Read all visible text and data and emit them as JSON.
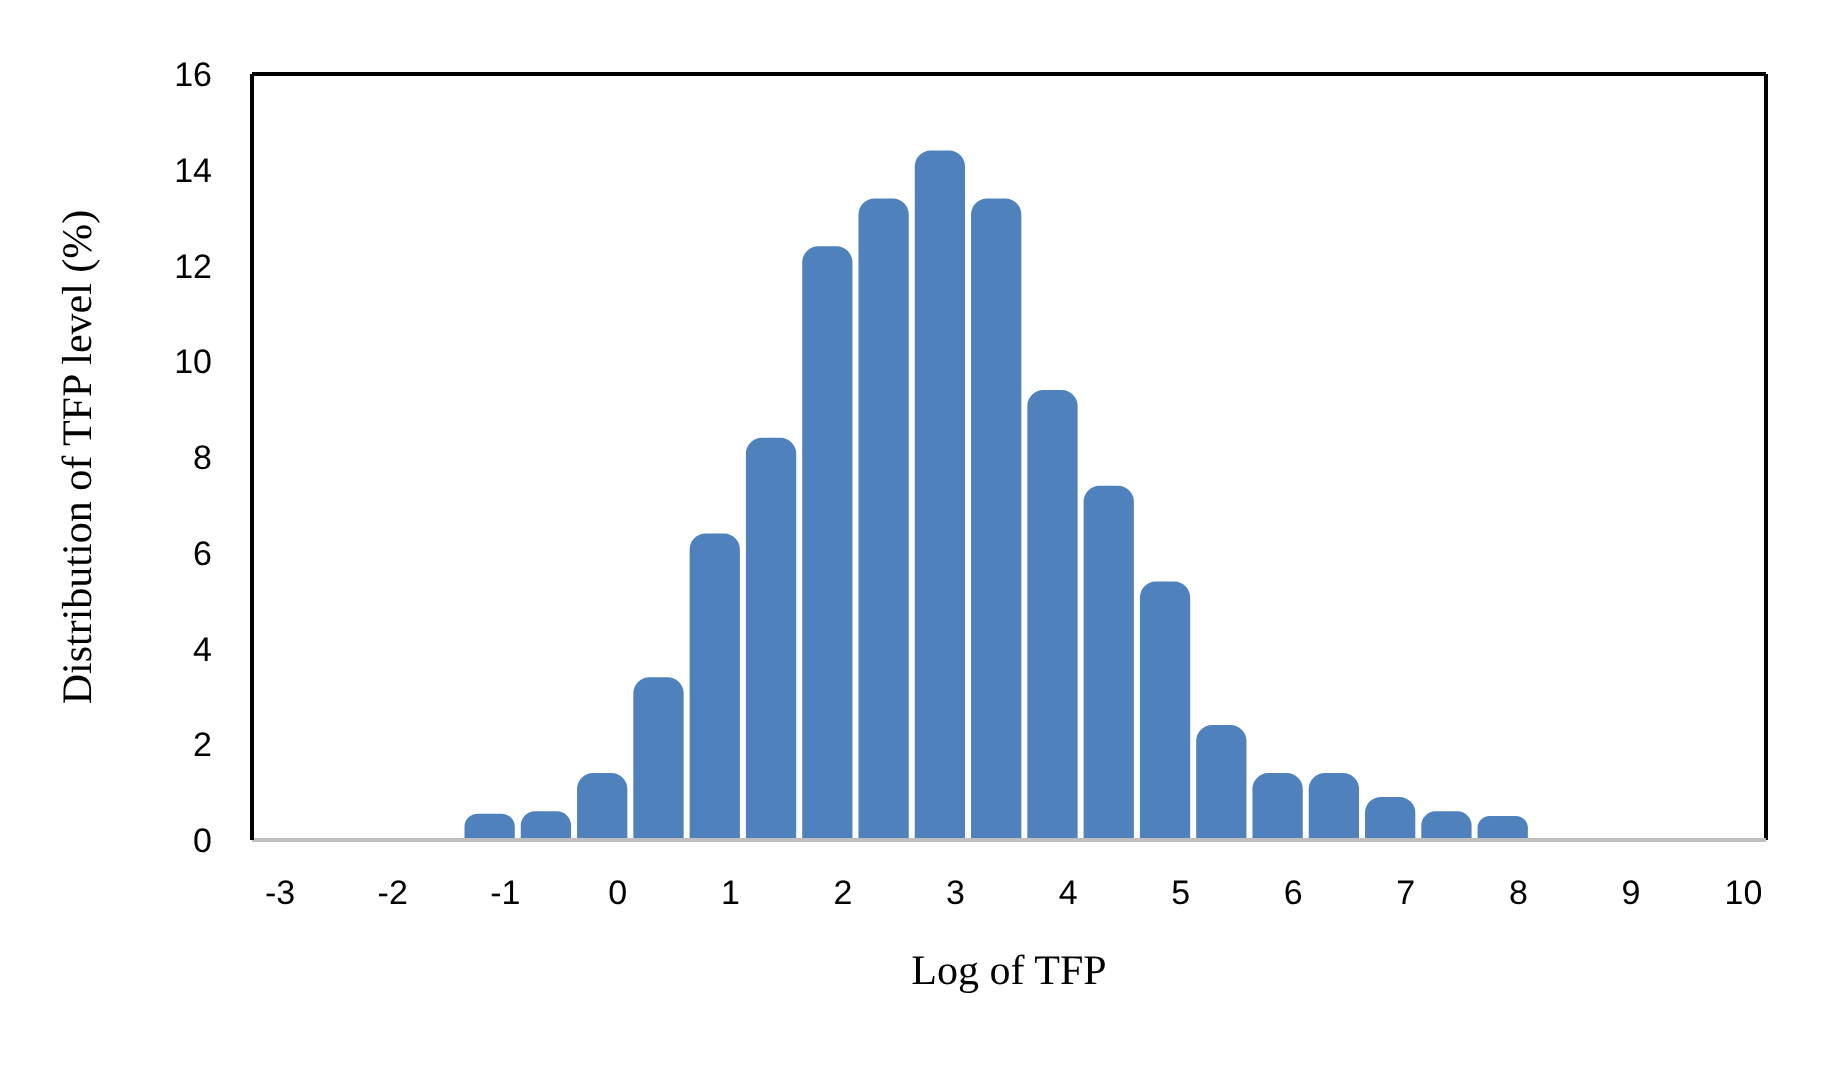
{
  "chart_data": {
    "type": "histogram",
    "xlabel": "Log of TFP",
    "ylabel": "Distribution of TFP level (%)",
    "bins": [
      -1.38,
      -0.88,
      -0.38,
      0.12,
      0.62,
      1.12,
      1.62,
      2.12,
      2.62,
      3.12,
      3.62,
      4.12,
      4.62,
      5.12,
      5.62,
      6.12,
      6.62,
      7.12,
      7.62,
      8.12
    ],
    "values": [
      0.55,
      0.6,
      1.4,
      3.4,
      6.4,
      8.4,
      12.4,
      13.4,
      14.4,
      13.4,
      9.4,
      7.4,
      5.4,
      2.4,
      1.4,
      1.4,
      0.9,
      0.6,
      0.5
    ],
    "color": "#4f81bd",
    "xlim": [
      -3.25,
      10.2
    ],
    "xticks": [
      -3,
      -2,
      -1,
      0,
      1,
      2,
      3,
      4,
      5,
      6,
      7,
      8,
      9,
      10
    ],
    "ylim": [
      0,
      16
    ],
    "yticks": [
      0,
      2,
      4,
      6,
      8,
      10,
      12,
      14,
      16
    ]
  }
}
